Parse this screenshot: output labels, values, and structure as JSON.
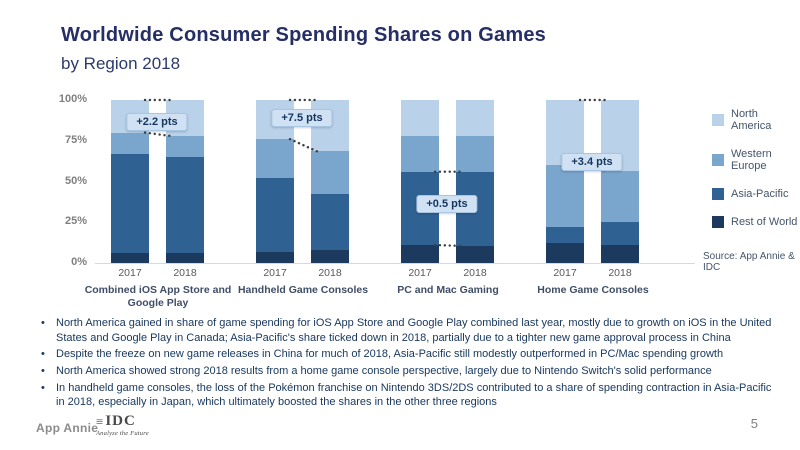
{
  "slide": {
    "title": "Worldwide Consumer Spending Shares on Games",
    "subtitle": "by Region 2018",
    "source": "Source: App Annie & IDC",
    "page_number": "5"
  },
  "chart_data": {
    "type": "bar",
    "variant": "stacked-100-percent",
    "title": "Worldwide Consumer Spending Shares on Games by Region 2018",
    "ylim": [
      0,
      100
    ],
    "y_ticks": [
      "100%",
      "75%",
      "50%",
      "25%",
      "0%"
    ],
    "grid": false,
    "legend_position": "right",
    "years": [
      "2017",
      "2018"
    ],
    "stack_order_bottom_to_top": [
      "Rest of World",
      "Asia-Pacific",
      "Western Europe",
      "North America"
    ],
    "legend": [
      {
        "name": "North America",
        "color": "#b9d2ea"
      },
      {
        "name": "Western Europe",
        "color": "#7aa5cd"
      },
      {
        "name": "Asia-Pacific",
        "color": "#2f6293"
      },
      {
        "name": "Rest of World",
        "color": "#1b3a5e"
      }
    ],
    "groups": [
      {
        "label": "Combined iOS App Store and Google Play",
        "annotation": "+2.2 pts",
        "annotation_y_pct": 85,
        "connector_boundaries": [
          3,
          2
        ],
        "values": {
          "2017": {
            "Rest of World": 6,
            "Asia-Pacific": 61,
            "Western Europe": 13,
            "North America": 20
          },
          "2018": {
            "Rest of World": 6,
            "Asia-Pacific": 58.8,
            "Western Europe": 13,
            "North America": 22.2
          }
        }
      },
      {
        "label": "Handheld Game Consoles",
        "annotation": "+7.5 pts",
        "annotation_y_pct": 88,
        "connector_boundaries": [
          3,
          2
        ],
        "values": {
          "2017": {
            "Rest of World": 7,
            "Asia-Pacific": 45,
            "Western Europe": 24,
            "North America": 24
          },
          "2018": {
            "Rest of World": 8,
            "Asia-Pacific": 34.5,
            "Western Europe": 26,
            "North America": 31.5
          }
        }
      },
      {
        "label": "PC and Mac Gaming",
        "annotation": "+0.5 pts",
        "annotation_y_pct": 35,
        "connector_boundaries": [
          1,
          0
        ],
        "values": {
          "2017": {
            "Rest of World": 11,
            "Asia-Pacific": 45,
            "Western Europe": 22,
            "North America": 22
          },
          "2018": {
            "Rest of World": 10.5,
            "Asia-Pacific": 45.5,
            "Western Europe": 22,
            "North America": 22
          }
        }
      },
      {
        "label": "Home Game Consoles",
        "annotation": "+3.4 pts",
        "annotation_y_pct": 61,
        "connector_boundaries": [
          3,
          2
        ],
        "values": {
          "2017": {
            "Rest of World": 12,
            "Asia-Pacific": 10,
            "Western Europe": 38,
            "North America": 40
          },
          "2018": {
            "Rest of World": 11,
            "Asia-Pacific": 14,
            "Western Europe": 31.6,
            "North America": 43.4
          }
        }
      }
    ]
  },
  "bullets": [
    "North America gained in share of game spending for iOS App Store and Google Play combined last year, mostly due to growth on iOS in the United States and Google Play in Canada; Asia-Pacific's share ticked down in 2018, partially due to a tighter new game approval process in China",
    "Despite the freeze on new game releases in China for much of 2018, Asia-Pacific still modestly outperformed in PC/Mac spending growth",
    "North America showed strong 2018 results from a home game console perspective, largely due to Nintendo Switch's solid performance",
    "In handheld game consoles, the loss of the Pokémon franchise on Nintendo 3DS/2DS contributed to a share of spending contraction in Asia-Pacific in 2018, especially in Japan, which ultimately boosted the shares in the other three regions"
  ],
  "footer": {
    "app_annie": "App Annie",
    "idc_bars": "≡",
    "idc_name": "IDC",
    "idc_tagline": "Analyze the Future"
  }
}
